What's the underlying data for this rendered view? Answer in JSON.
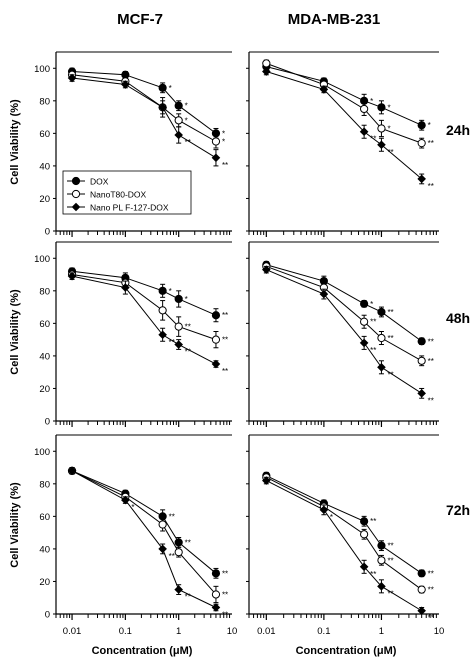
{
  "figure": {
    "col_titles": [
      "MCF-7",
      "MDA-MB-231"
    ],
    "row_labels": [
      "24h",
      "48h",
      "72h"
    ],
    "ylabel": "Cell Viability (%)",
    "xlabel": "Concentration (μM)",
    "legend": [
      "DOX",
      "NanoT80-DOX",
      "Nano PL F-127-DOX"
    ]
  },
  "chart_data": [
    {
      "type": "line",
      "cell_line": "MCF-7",
      "timepoint": "24h",
      "x_scale": "log",
      "xlim": [
        0.005,
        10
      ],
      "ylim": [
        0,
        110
      ],
      "yticks": [
        0,
        20,
        40,
        60,
        80,
        100
      ],
      "xticks": [
        "0.01",
        "0.1",
        "1",
        "10"
      ],
      "x": [
        0.01,
        0.1,
        0.5,
        1,
        5
      ],
      "series": [
        {
          "name": "DOX",
          "values": [
            98,
            96,
            88,
            77,
            60
          ],
          "errors": [
            2,
            2,
            3,
            3,
            3
          ],
          "marker": "filled-circle",
          "sig": [
            "",
            "",
            "*",
            "*",
            "*"
          ]
        },
        {
          "name": "NanoT80-DOX",
          "values": [
            96,
            92,
            76,
            68,
            55
          ],
          "errors": [
            2,
            2,
            4,
            4,
            4
          ],
          "marker": "open-circle",
          "sig": [
            "",
            "",
            "",
            "*",
            "*"
          ]
        },
        {
          "name": "Nano PL F-127-DOX",
          "values": [
            94,
            90,
            76,
            59,
            45
          ],
          "errors": [
            2,
            2,
            6,
            5,
            5
          ],
          "marker": "filled-diamond",
          "sig": [
            "",
            "",
            "",
            "**",
            "**"
          ]
        }
      ]
    },
    {
      "type": "line",
      "cell_line": "MDA-MB-231",
      "timepoint": "24h",
      "x_scale": "log",
      "xlim": [
        0.005,
        10
      ],
      "ylim": [
        0,
        110
      ],
      "yticks": [
        0,
        20,
        40,
        60,
        80,
        100
      ],
      "xticks": [
        "0.01",
        "0.1",
        "1",
        "10"
      ],
      "x": [
        0.01,
        0.1,
        0.5,
        1,
        5
      ],
      "series": [
        {
          "name": "DOX",
          "values": [
            101,
            92,
            80,
            76,
            65
          ],
          "errors": [
            2,
            2,
            4,
            4,
            3
          ],
          "marker": "filled-circle",
          "sig": [
            "",
            "",
            "*",
            "*",
            "*"
          ]
        },
        {
          "name": "NanoT80-DOX",
          "values": [
            103,
            90,
            75,
            63,
            54
          ],
          "errors": [
            2,
            2,
            4,
            5,
            3
          ],
          "marker": "open-circle",
          "sig": [
            "",
            "",
            "",
            "*",
            "**"
          ]
        },
        {
          "name": "Nano PL F-127-DOX",
          "values": [
            98,
            87,
            61,
            53,
            32
          ],
          "errors": [
            2,
            2,
            4,
            4,
            3
          ],
          "marker": "filled-diamond",
          "sig": [
            "",
            "",
            "**",
            "**",
            "**"
          ]
        }
      ]
    },
    {
      "type": "line",
      "cell_line": "MCF-7",
      "timepoint": "48h",
      "x_scale": "log",
      "xlim": [
        0.005,
        10
      ],
      "ylim": [
        0,
        110
      ],
      "yticks": [
        0,
        20,
        40,
        60,
        80,
        100
      ],
      "xticks": [
        "0.01",
        "0.1",
        "1",
        "10"
      ],
      "x": [
        0.01,
        0.1,
        0.5,
        1,
        5
      ],
      "series": [
        {
          "name": "DOX",
          "values": [
            92,
            88,
            80,
            75,
            65
          ],
          "errors": [
            2,
            3,
            4,
            5,
            4
          ],
          "marker": "filled-circle",
          "sig": [
            "",
            "",
            "*",
            "*",
            "**"
          ]
        },
        {
          "name": "NanoT80-DOX",
          "values": [
            90,
            85,
            68,
            58,
            50
          ],
          "errors": [
            2,
            3,
            6,
            6,
            5
          ],
          "marker": "open-circle",
          "sig": [
            "",
            "",
            "",
            "**",
            "**"
          ]
        },
        {
          "name": "Nano PL F-127-DOX",
          "values": [
            89,
            82,
            53,
            47,
            35
          ],
          "errors": [
            2,
            4,
            4,
            3,
            2
          ],
          "marker": "filled-diamond",
          "sig": [
            "",
            "",
            "**",
            "**",
            "**"
          ]
        }
      ]
    },
    {
      "type": "line",
      "cell_line": "MDA-MB-231",
      "timepoint": "48h",
      "x_scale": "log",
      "xlim": [
        0.005,
        10
      ],
      "ylim": [
        0,
        110
      ],
      "yticks": [
        0,
        20,
        40,
        60,
        80,
        100
      ],
      "xticks": [
        "0.01",
        "0.1",
        "1",
        "10"
      ],
      "x": [
        0.01,
        0.1,
        0.5,
        1,
        5
      ],
      "series": [
        {
          "name": "DOX",
          "values": [
            96,
            86,
            72,
            67,
            49
          ],
          "errors": [
            2,
            3,
            2,
            3,
            2
          ],
          "marker": "filled-circle",
          "sig": [
            "",
            "",
            "*",
            "**",
            "**"
          ]
        },
        {
          "name": "NanoT80-DOX",
          "values": [
            95,
            82,
            61,
            51,
            37
          ],
          "errors": [
            2,
            3,
            4,
            4,
            3
          ],
          "marker": "open-circle",
          "sig": [
            "",
            "",
            "**",
            "**",
            "**"
          ]
        },
        {
          "name": "Nano PL F-127-DOX",
          "values": [
            93,
            78,
            48,
            33,
            17
          ],
          "errors": [
            2,
            3,
            4,
            4,
            3
          ],
          "marker": "filled-diamond",
          "sig": [
            "",
            "",
            "**",
            "**",
            "**"
          ]
        }
      ]
    },
    {
      "type": "line",
      "cell_line": "MCF-7",
      "timepoint": "72h",
      "x_scale": "log",
      "xlim": [
        0.005,
        10
      ],
      "ylim": [
        0,
        110
      ],
      "yticks": [
        0,
        20,
        40,
        60,
        80,
        100
      ],
      "xticks": [
        "0.01",
        "0.1",
        "1",
        "10"
      ],
      "x": [
        0.01,
        0.1,
        0.5,
        1,
        5
      ],
      "series": [
        {
          "name": "DOX",
          "values": [
            88,
            74,
            60,
            44,
            25
          ],
          "errors": [
            2,
            2,
            4,
            3,
            3
          ],
          "marker": "filled-circle",
          "sig": [
            "",
            "",
            "**",
            "**",
            "**"
          ]
        },
        {
          "name": "NanoT80-DOX",
          "values": [
            88,
            72,
            55,
            38,
            12
          ],
          "errors": [
            2,
            2,
            4,
            3,
            5
          ],
          "marker": "open-circle",
          "sig": [
            "",
            "",
            "",
            "",
            "**"
          ]
        },
        {
          "name": "Nano PL F-127-DOX",
          "values": [
            88,
            70,
            40,
            15,
            4
          ],
          "errors": [
            2,
            2,
            3,
            3,
            2
          ],
          "marker": "filled-diamond",
          "sig": [
            "",
            "*",
            "**",
            "**",
            "**"
          ]
        }
      ]
    },
    {
      "type": "line",
      "cell_line": "MDA-MB-231",
      "timepoint": "72h",
      "x_scale": "log",
      "xlim": [
        0.005,
        10
      ],
      "ylim": [
        0,
        110
      ],
      "yticks": [
        0,
        20,
        40,
        60,
        80,
        100
      ],
      "xticks": [
        "0.01",
        "0.1",
        "1",
        "10"
      ],
      "x": [
        0.01,
        0.1,
        0.5,
        1,
        5
      ],
      "series": [
        {
          "name": "DOX",
          "values": [
            85,
            68,
            57,
            42,
            25
          ],
          "errors": [
            2,
            2,
            3,
            3,
            2
          ],
          "marker": "filled-circle",
          "sig": [
            "",
            "",
            "**",
            "**",
            "**"
          ]
        },
        {
          "name": "NanoT80-DOX",
          "values": [
            84,
            66,
            49,
            33,
            15
          ],
          "errors": [
            2,
            2,
            3,
            3,
            2
          ],
          "marker": "open-circle",
          "sig": [
            "",
            "",
            "",
            "**",
            "**"
          ]
        },
        {
          "name": "Nano PL F-127-DOX",
          "values": [
            82,
            64,
            29,
            17,
            2
          ],
          "errors": [
            2,
            3,
            4,
            4,
            2
          ],
          "marker": "filled-diamond",
          "sig": [
            "",
            "*",
            "**",
            "**",
            "**"
          ]
        }
      ]
    }
  ]
}
